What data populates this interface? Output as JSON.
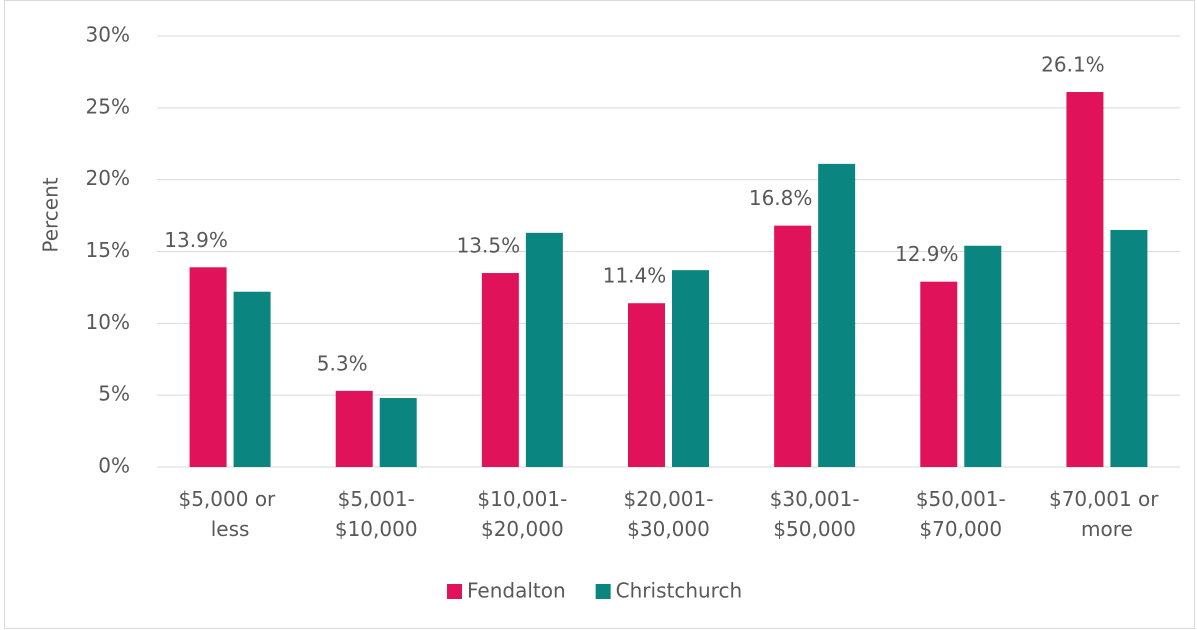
{
  "chart_data": {
    "type": "bar",
    "y_label": "Percent",
    "categories": [
      "$5,000 or less",
      "$5,001-$10,000",
      "$10,001-$20,000",
      "$20,001-$30,000",
      "$30,001-$50,000",
      "$50,001-$70,000",
      "$70,001 or more"
    ],
    "series": [
      {
        "name": "Fendalton",
        "color": "#e0135a",
        "values": [
          13.9,
          5.3,
          13.5,
          11.4,
          16.8,
          12.9,
          26.1
        ],
        "value_labels": [
          "13.9%",
          "5.3%",
          "13.5%",
          "11.4%",
          "16.8%",
          "12.9%",
          "26.1%"
        ]
      },
      {
        "name": "Christchurch",
        "color": "#0a8580",
        "values": [
          12.2,
          4.8,
          16.3,
          13.7,
          21.1,
          15.4,
          16.5
        ]
      }
    ],
    "ylim": [
      0,
      30
    ],
    "yticks": [
      {
        "value": 0,
        "label": "0%"
      },
      {
        "value": 5,
        "label": "5%"
      },
      {
        "value": 10,
        "label": "10%"
      },
      {
        "value": 15,
        "label": "15%"
      },
      {
        "value": 20,
        "label": "20%"
      },
      {
        "value": 25,
        "label": "25%"
      },
      {
        "value": 30,
        "label": "30%"
      }
    ],
    "grid": true,
    "legend": "bottom"
  }
}
